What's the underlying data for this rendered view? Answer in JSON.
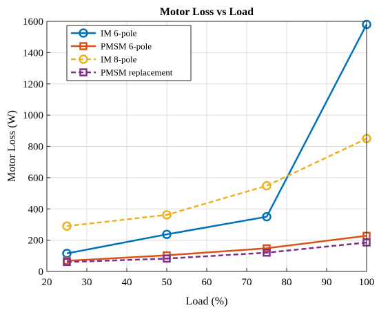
{
  "chart_data": {
    "type": "line",
    "title": "Motor Loss vs Load",
    "xlabel": "Load (%)",
    "ylabel": "Motor Loss (W)",
    "xlim": [
      20,
      100
    ],
    "ylim": [
      0,
      1600
    ],
    "xticks": [
      20,
      30,
      40,
      50,
      60,
      70,
      80,
      90,
      100
    ],
    "yticks": [
      0,
      200,
      400,
      600,
      800,
      1000,
      1200,
      1400,
      1600
    ],
    "grid": true,
    "legend_position": "top-left",
    "x": [
      25,
      50,
      75,
      100
    ],
    "series": [
      {
        "name": "IM 6-pole",
        "values": [
          115,
          237,
          350,
          1580
        ],
        "color": "#0072BD",
        "marker": "circle",
        "dashed": false
      },
      {
        "name": "PMSM 6-pole",
        "values": [
          68,
          103,
          148,
          228
        ],
        "color": "#D95319",
        "marker": "square",
        "dashed": false
      },
      {
        "name": "IM 8-pole",
        "values": [
          290,
          362,
          548,
          850
        ],
        "color": "#EDB120",
        "marker": "circle",
        "dashed": true
      },
      {
        "name": "PMSM replacement",
        "values": [
          60,
          82,
          120,
          185
        ],
        "color": "#7E2F8E",
        "marker": "square",
        "dashed": true
      }
    ]
  }
}
